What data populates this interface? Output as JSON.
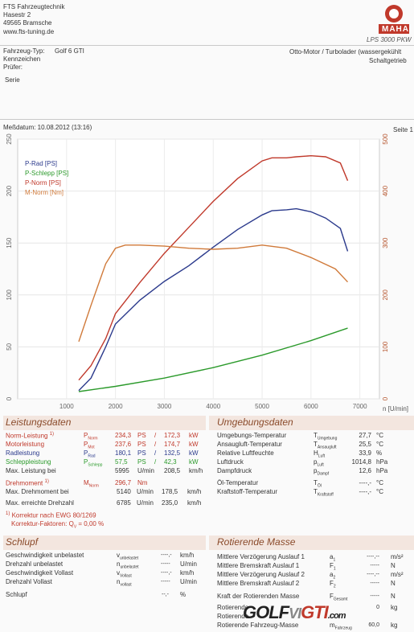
{
  "company": {
    "name": "FTS Fahrzeugtechnik",
    "street": "Hasestr 2",
    "city": "49565 Bramsche",
    "web": "www.fts-tuning.de"
  },
  "logo": {
    "brand": "MAHA",
    "model": "LPS 3000 PKW"
  },
  "vehicle": {
    "type_label": "Fahrzeug-Typ:",
    "type_value": "Golf 6 GTI",
    "plate_label": "Kennzeichen",
    "examiner_label": "Prüfer:",
    "engine": "Otto-Motor / Turbolader (wassergekühlt",
    "gearbox": "Schaltgetrieb",
    "series_label": "Serie",
    "measure_date": "Meßdatum: 10.08.2012 (13:16)",
    "page": "Seite 1"
  },
  "chart_data": {
    "type": "line",
    "x_label": "n [U/min]",
    "x_ticks": [
      1000,
      2000,
      3000,
      4000,
      5000,
      6000,
      7000
    ],
    "y_left_ticks": [
      0,
      50,
      100,
      150,
      200,
      250
    ],
    "y_right_ticks": [
      0,
      100,
      200,
      300,
      400,
      500
    ],
    "xlim": [
      0,
      7400
    ],
    "ylim_left": [
      0,
      250
    ],
    "ylim_right": [
      0,
      500
    ],
    "legend": [
      "P-Rad [PS]",
      "P-Schlepp [PS]",
      "P-Norm [PS]",
      "M-Norm [Nm]"
    ],
    "series": [
      {
        "name": "P-Rad [PS]",
        "color": "#2b3a8c",
        "axis": "left",
        "x": [
          1250,
          1500,
          1800,
          2000,
          2500,
          3000,
          3500,
          4000,
          4500,
          5000,
          5200,
          5500,
          5700,
          6000,
          6300,
          6600,
          6750
        ],
        "values": [
          8,
          20,
          50,
          72,
          95,
          113,
          128,
          146,
          163,
          177,
          181,
          182,
          183,
          180,
          174,
          164,
          142
        ]
      },
      {
        "name": "P-Schlepp [PS]",
        "color": "#2b9a2b",
        "axis": "left",
        "x": [
          1250,
          2000,
          3000,
          4000,
          5000,
          6000,
          6750
        ],
        "values": [
          7,
          12,
          20,
          30,
          42,
          56,
          68
        ]
      },
      {
        "name": "P-Norm [PS]",
        "color": "#c0392b",
        "axis": "left",
        "x": [
          1250,
          1500,
          1800,
          2000,
          2500,
          3000,
          3500,
          4000,
          4500,
          5000,
          5200,
          5500,
          5700,
          6000,
          6300,
          6600,
          6750
        ],
        "values": [
          18,
          32,
          58,
          82,
          112,
          140,
          165,
          190,
          212,
          229,
          232,
          232,
          233,
          234,
          233,
          227,
          210
        ]
      },
      {
        "name": "M-Norm [Nm]",
        "color": "#d07a3a",
        "axis": "right",
        "x": [
          1250,
          1500,
          1800,
          2000,
          2200,
          2500,
          3000,
          3500,
          4000,
          4500,
          5000,
          5500,
          6000,
          6500,
          6750
        ],
        "values": [
          110,
          180,
          260,
          290,
          296,
          296,
          294,
          290,
          288,
          290,
          296,
          290,
          272,
          250,
          225
        ]
      }
    ]
  },
  "leistung": {
    "header": "Leistungsdaten",
    "rows": [
      {
        "label": "Norm-Leistung",
        "note": "1)",
        "sym": "P",
        "sub": "Norm",
        "v1": "234,3",
        "u1": "PS",
        "v2": "172,3",
        "u2": "kW"
      },
      {
        "label": "Motorleistung",
        "note": "",
        "sym": "P",
        "sub": "Mot",
        "v1": "237,6",
        "u1": "PS",
        "v2": "174,7",
        "u2": "kW"
      },
      {
        "label": "Radleistung",
        "note": "",
        "sym": "P",
        "sub": "Rad",
        "v1": "180,1",
        "u1": "PS",
        "v2": "132,5",
        "u2": "kW"
      },
      {
        "label": "Schleppleistung",
        "note": "",
        "sym": "P",
        "sub": "Schlepp",
        "v1": "57,5",
        "u1": "PS",
        "v2": "42,3",
        "u2": "kW"
      },
      {
        "label": "Max. Leistung bei",
        "note": "",
        "sym": "",
        "sub": "",
        "v1": "5995",
        "u1": "U/min",
        "v2": "208,5",
        "u2": "km/h"
      }
    ],
    "dreh_label": "Drehmoment",
    "dreh_note": "1)",
    "dreh_sym": "M",
    "dreh_sub": "Norm",
    "dreh_value": "296,7",
    "dreh_unit": "Nm",
    "max_dreh_label": "Max. Drehmoment bei",
    "max_dreh_rpm": "5140",
    "max_dreh_rpm_unit": "U/min",
    "max_dreh_speed": "178,5",
    "max_dreh_speed_unit": "km/h",
    "max_rpm_label": "Max. erreichte Drehzahl",
    "max_rpm": "6785",
    "max_rpm_unit": "U/min",
    "max_rpm_speed": "235,0",
    "max_rpm_speed_unit": "km/h",
    "korrektur": "Korrektur nach EWG 80/1269",
    "korrektur_note": "1)",
    "korrektur_faktor": "Korrektur-Faktoren: Q",
    "korrektur_sub": "V",
    "korrektur_value": "=   0,00 %"
  },
  "umgebung": {
    "header": "Umgebungsdaten",
    "rows": [
      {
        "label": "Umgebungs-Temperatur",
        "sym": "T",
        "sub": "Umgebung",
        "val": "27,7",
        "unit": "°C"
      },
      {
        "label": "Ansaugluft-Temperatur",
        "sym": "T",
        "sub": "Ansaugluft",
        "val": "25,5",
        "unit": "°C"
      },
      {
        "label": "Relative Luftfeuchte",
        "sym": "H",
        "sub": "Luft",
        "val": "33,9",
        "unit": "%"
      },
      {
        "label": "Luftdruck",
        "sym": "p",
        "sub": "Luft",
        "val": "1014,8",
        "unit": "hPa"
      },
      {
        "label": "Dampfdruck",
        "sym": "p",
        "sub": "Dampf",
        "val": "12,6",
        "unit": "hPa"
      },
      {
        "label": "Öl-Temperatur",
        "sym": "T",
        "sub": "Öl",
        "val": "----,-",
        "unit": "°C"
      },
      {
        "label": "Kraftstoff-Temperatur",
        "sym": "T",
        "sub": "Kraftstoff",
        "val": "----,-",
        "unit": "°C"
      }
    ]
  },
  "schlupf": {
    "header": "Schlupf",
    "rows": [
      {
        "label": "Geschwindigkeit unbelastet",
        "sym": "v",
        "sub": "unbelastet",
        "val": "----,-",
        "unit": "km/h"
      },
      {
        "label": "Drehzahl unbelastet",
        "sym": "n",
        "sub": "unbelastet",
        "val": "-----",
        "unit": "U/min"
      },
      {
        "label": "Geschwindigkeit Vollast",
        "sym": "v",
        "sub": "Vollast",
        "val": "----,-",
        "unit": "km/h"
      },
      {
        "label": "Drehzahl Vollast",
        "sym": "n",
        "sub": "vollast",
        "val": "-----",
        "unit": "U/min"
      }
    ],
    "slip_label": "Schlupf",
    "slip_val": "--,-",
    "slip_unit": "%"
  },
  "rotierende": {
    "header": "Rotierende Masse",
    "rows": [
      {
        "label": "Mittlere Verzögerung Auslauf 1",
        "sym": "a",
        "sub": "1",
        "val": "----,--",
        "unit": "m/s²"
      },
      {
        "label": "Mittlere Bremskraft Auslauf 1",
        "sym": "F",
        "sub": "1",
        "val": "-----",
        "unit": "N"
      },
      {
        "label": "Mittlere Verzögerung Auslauf 2",
        "sym": "a",
        "sub": "2",
        "val": "----,--",
        "unit": "m/s²"
      },
      {
        "label": "Mittlere Bremskraft Auslauf 2",
        "sym": "F",
        "sub": "2",
        "val": "-----",
        "unit": "N"
      },
      {
        "label": "Kraft der Rotierenden Masse",
        "sym": "F",
        "sub": "Gesamt",
        "val": "-----",
        "unit": "N"
      },
      {
        "label": "Rotierende",
        "sym": "",
        "sub": "",
        "val": "0",
        "unit": "kg"
      },
      {
        "label": "Rotierende",
        "sym": "",
        "sub": "",
        "val": "",
        "unit": ""
      },
      {
        "label": "Rotierende Fahrzeug-Masse",
        "sym": "m",
        "sub": "Fahrzeug",
        "val": "60,0",
        "unit": "kg"
      }
    ]
  },
  "watermark": "GOLF GTI .com",
  "watermark_parts": {
    "golf": "GOLF",
    "vi": "VI",
    "gti": "GTI",
    "com": ".com"
  }
}
